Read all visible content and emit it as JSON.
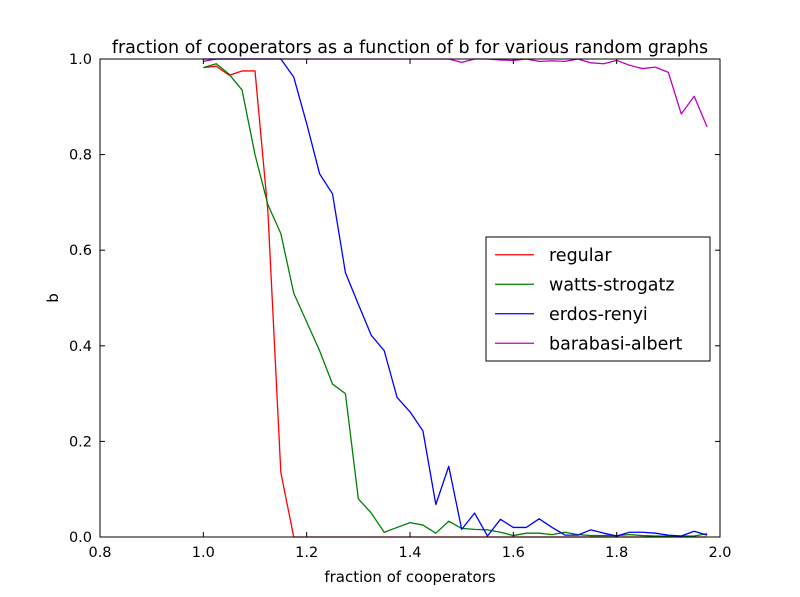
{
  "chart_data": {
    "type": "line",
    "title": "fraction of cooperators as a function of b for various random graphs",
    "xlabel": "fraction of cooperators",
    "ylabel": "b",
    "xlim": [
      0.8,
      2.0
    ],
    "ylim": [
      0.0,
      1.0
    ],
    "xticks": [
      "0.8",
      "1.0",
      "1.2",
      "1.4",
      "1.6",
      "1.8",
      "2.0"
    ],
    "yticks": [
      "0.0",
      "0.2",
      "0.4",
      "0.6",
      "0.8",
      "1.0"
    ],
    "grid": false,
    "legend_position": "center-right",
    "series": [
      {
        "name": "regular",
        "color": "#ff0000",
        "x": [
          1.0,
          1.025,
          1.05,
          1.075,
          1.1,
          1.125,
          1.15,
          1.175,
          1.2,
          1.225,
          1.25,
          1.275,
          1.3,
          1.325,
          1.35,
          1.375,
          1.4,
          1.425,
          1.45,
          1.475,
          1.5,
          1.525,
          1.55,
          1.575,
          1.6,
          1.625,
          1.65,
          1.675,
          1.7,
          1.725,
          1.75,
          1.775,
          1.8,
          1.825,
          1.85,
          1.875,
          1.9,
          1.925,
          1.95,
          1.975
        ],
        "y": [
          0.982,
          0.985,
          0.966,
          0.975,
          0.975,
          0.68,
          0.135,
          0.0,
          0.0,
          0.0,
          0.0,
          0.0,
          0.0,
          0.0,
          0.0,
          0.0,
          0.0,
          0.0,
          0.0,
          0.0,
          0.0,
          0.0,
          0.0,
          0.0,
          0.0,
          0.0,
          0.0,
          0.0,
          0.0,
          0.0,
          0.0,
          0.0,
          0.0,
          0.0,
          0.0,
          0.0,
          0.0,
          0.0,
          0.0,
          0.0
        ]
      },
      {
        "name": "watts-strogatz",
        "color": "#008000",
        "x": [
          1.0,
          1.025,
          1.05,
          1.075,
          1.1,
          1.125,
          1.15,
          1.175,
          1.2,
          1.225,
          1.25,
          1.275,
          1.3,
          1.325,
          1.35,
          1.375,
          1.4,
          1.425,
          1.45,
          1.475,
          1.5,
          1.525,
          1.55,
          1.575,
          1.6,
          1.625,
          1.65,
          1.675,
          1.7,
          1.725,
          1.75,
          1.775,
          1.8,
          1.825,
          1.85,
          1.875,
          1.9,
          1.925,
          1.95,
          1.975
        ],
        "y": [
          0.982,
          0.99,
          0.968,
          0.935,
          0.8,
          0.695,
          0.635,
          0.51,
          0.45,
          0.39,
          0.32,
          0.3,
          0.08,
          0.05,
          0.01,
          0.02,
          0.03,
          0.025,
          0.008,
          0.033,
          0.018,
          0.016,
          0.015,
          0.01,
          0.003,
          0.008,
          0.008,
          0.005,
          0.01,
          0.005,
          0.003,
          0.003,
          0.003,
          0.005,
          0.003,
          0.002,
          0.002,
          0.002,
          0.002,
          0.007
        ]
      },
      {
        "name": "erdos-renyi",
        "color": "#0000ff",
        "x": [
          1.0,
          1.025,
          1.05,
          1.075,
          1.1,
          1.125,
          1.15,
          1.175,
          1.2,
          1.225,
          1.25,
          1.275,
          1.3,
          1.325,
          1.35,
          1.375,
          1.4,
          1.425,
          1.45,
          1.475,
          1.5,
          1.525,
          1.55,
          1.575,
          1.6,
          1.625,
          1.65,
          1.675,
          1.7,
          1.725,
          1.75,
          1.775,
          1.8,
          1.825,
          1.85,
          1.875,
          1.9,
          1.925,
          1.95,
          1.975
        ],
        "y": [
          1.0,
          1.0,
          1.0,
          1.0,
          1.0,
          1.0,
          1.0,
          0.962,
          0.865,
          0.76,
          0.718,
          0.553,
          0.487,
          0.422,
          0.39,
          0.292,
          0.262,
          0.222,
          0.068,
          0.148,
          0.016,
          0.05,
          0.002,
          0.037,
          0.02,
          0.02,
          0.038,
          0.02,
          0.004,
          0.004,
          0.015,
          0.008,
          0.002,
          0.01,
          0.01,
          0.008,
          0.004,
          0.002,
          0.012,
          0.004
        ]
      },
      {
        "name": "barabasi-albert",
        "color": "#bf00bf",
        "x": [
          1.0,
          1.025,
          1.05,
          1.075,
          1.1,
          1.125,
          1.15,
          1.175,
          1.2,
          1.225,
          1.25,
          1.275,
          1.3,
          1.325,
          1.35,
          1.375,
          1.4,
          1.425,
          1.45,
          1.475,
          1.5,
          1.525,
          1.55,
          1.575,
          1.6,
          1.625,
          1.65,
          1.675,
          1.7,
          1.725,
          1.75,
          1.775,
          1.8,
          1.825,
          1.85,
          1.875,
          1.9,
          1.925,
          1.95,
          1.975
        ],
        "y": [
          0.995,
          1.0,
          1.0,
          1.0,
          1.0,
          1.0,
          1.0,
          1.0,
          1.0,
          1.0,
          1.0,
          1.0,
          1.0,
          1.0,
          1.0,
          1.0,
          1.0,
          1.0,
          1.0,
          1.0,
          0.993,
          1.0,
          1.0,
          0.998,
          0.997,
          1.0,
          0.995,
          0.996,
          0.995,
          1.0,
          0.992,
          0.99,
          0.997,
          0.987,
          0.98,
          0.983,
          0.972,
          0.885,
          0.922,
          0.858
        ]
      }
    ]
  }
}
